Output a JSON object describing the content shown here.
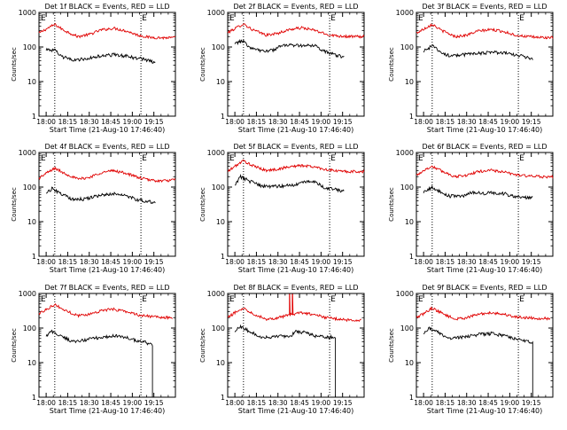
{
  "chart_data": {
    "type": "line",
    "yscale": "log",
    "ylim": [
      1,
      1000
    ],
    "xlim_minutes": [
      -5,
      90
    ],
    "ytick_labels": [
      "1",
      "10",
      "100",
      "1000"
    ],
    "ytick_values": [
      1,
      10,
      100,
      1000
    ],
    "xtick_labels": [
      "18:00",
      "18:15",
      "18:30",
      "18:45",
      "19:00",
      "19:15"
    ],
    "xtick_minutes": [
      0,
      15,
      30,
      45,
      60,
      75
    ],
    "ylabel": "Counts/sec",
    "xlabel": "Start Time (21-Aug-10 17:46:40)",
    "vlines_minutes": [
      6,
      66
    ],
    "marker_label": "E",
    "colors": {
      "events": "#000000",
      "lld": "#e00000"
    },
    "panels": [
      {
        "title": "Det 1f BLACK = Events, RED = LLD",
        "lld_knots": [
          [
            -5,
            250
          ],
          [
            0,
            330
          ],
          [
            6,
            450
          ],
          [
            12,
            310
          ],
          [
            22,
            200
          ],
          [
            30,
            230
          ],
          [
            38,
            310
          ],
          [
            47,
            350
          ],
          [
            56,
            290
          ],
          [
            64,
            220
          ],
          [
            72,
            190
          ],
          [
            80,
            185
          ],
          [
            90,
            185
          ]
        ],
        "events_knots": [
          [
            0,
            85
          ],
          [
            6,
            80
          ],
          [
            10,
            55
          ],
          [
            18,
            42
          ],
          [
            27,
            45
          ],
          [
            38,
            55
          ],
          [
            48,
            60
          ],
          [
            56,
            55
          ],
          [
            62,
            48
          ],
          [
            68,
            45
          ],
          [
            72,
            40
          ],
          [
            76,
            35
          ]
        ],
        "events_start": 0,
        "events_end": 76,
        "events_drop": null,
        "lld_spikes": []
      },
      {
        "title": "Det 2f BLACK = Events, RED = LLD",
        "lld_knots": [
          [
            -5,
            260
          ],
          [
            0,
            340
          ],
          [
            6,
            470
          ],
          [
            12,
            320
          ],
          [
            22,
            220
          ],
          [
            30,
            250
          ],
          [
            38,
            320
          ],
          [
            47,
            360
          ],
          [
            56,
            300
          ],
          [
            64,
            230
          ],
          [
            72,
            210
          ],
          [
            80,
            200
          ],
          [
            90,
            200
          ]
        ],
        "events_knots": [
          [
            0,
            130
          ],
          [
            6,
            150
          ],
          [
            10,
            100
          ],
          [
            18,
            75
          ],
          [
            26,
            80
          ],
          [
            34,
            115
          ],
          [
            42,
            110
          ],
          [
            48,
            110
          ],
          [
            56,
            110
          ],
          [
            60,
            80
          ],
          [
            70,
            60
          ],
          [
            76,
            50
          ]
        ],
        "events_start": 0,
        "events_end": 76,
        "events_drop": null,
        "lld_spikes": []
      },
      {
        "title": "Det 3f BLACK = Events, RED = LLD",
        "lld_knots": [
          [
            -5,
            250
          ],
          [
            0,
            330
          ],
          [
            6,
            460
          ],
          [
            12,
            310
          ],
          [
            22,
            200
          ],
          [
            30,
            220
          ],
          [
            38,
            290
          ],
          [
            47,
            320
          ],
          [
            56,
            280
          ],
          [
            64,
            220
          ],
          [
            72,
            200
          ],
          [
            80,
            190
          ],
          [
            90,
            185
          ]
        ],
        "events_knots": [
          [
            0,
            75
          ],
          [
            6,
            110
          ],
          [
            10,
            80
          ],
          [
            18,
            55
          ],
          [
            27,
            60
          ],
          [
            38,
            65
          ],
          [
            48,
            70
          ],
          [
            56,
            70
          ],
          [
            62,
            60
          ],
          [
            68,
            55
          ],
          [
            72,
            50
          ],
          [
            76,
            45
          ]
        ],
        "events_start": 0,
        "events_end": 76,
        "events_drop": null,
        "lld_spikes": []
      },
      {
        "title": "Det 4f BLACK = Events, RED = LLD",
        "lld_knots": [
          [
            -5,
            180
          ],
          [
            0,
            250
          ],
          [
            6,
            350
          ],
          [
            12,
            260
          ],
          [
            22,
            170
          ],
          [
            30,
            190
          ],
          [
            38,
            260
          ],
          [
            47,
            300
          ],
          [
            56,
            250
          ],
          [
            64,
            190
          ],
          [
            72,
            160
          ],
          [
            80,
            150
          ],
          [
            90,
            160
          ]
        ],
        "events_knots": [
          [
            0,
            70
          ],
          [
            4,
            90
          ],
          [
            10,
            65
          ],
          [
            18,
            45
          ],
          [
            27,
            45
          ],
          [
            38,
            60
          ],
          [
            48,
            65
          ],
          [
            56,
            55
          ],
          [
            62,
            45
          ],
          [
            68,
            40
          ],
          [
            72,
            38
          ],
          [
            76,
            35
          ]
        ],
        "events_start": 0,
        "events_end": 76,
        "events_drop": null,
        "lld_spikes": []
      },
      {
        "title": "Det 5f BLACK = Events, RED = LLD",
        "lld_knots": [
          [
            -5,
            280
          ],
          [
            0,
            400
          ],
          [
            6,
            580
          ],
          [
            12,
            420
          ],
          [
            22,
            300
          ],
          [
            30,
            330
          ],
          [
            38,
            390
          ],
          [
            47,
            420
          ],
          [
            56,
            380
          ],
          [
            64,
            320
          ],
          [
            72,
            290
          ],
          [
            80,
            280
          ],
          [
            90,
            280
          ]
        ],
        "events_knots": [
          [
            0,
            120
          ],
          [
            4,
            200
          ],
          [
            10,
            150
          ],
          [
            18,
            110
          ],
          [
            26,
            105
          ],
          [
            36,
            110
          ],
          [
            42,
            115
          ],
          [
            48,
            150
          ],
          [
            56,
            140
          ],
          [
            62,
            100
          ],
          [
            70,
            85
          ],
          [
            76,
            75
          ]
        ],
        "events_start": 0,
        "events_end": 76,
        "events_drop": null,
        "lld_spikes": []
      },
      {
        "title": "Det 6f BLACK = Events, RED = LLD",
        "lld_knots": [
          [
            -5,
            220
          ],
          [
            0,
            300
          ],
          [
            6,
            400
          ],
          [
            12,
            300
          ],
          [
            22,
            200
          ],
          [
            30,
            220
          ],
          [
            38,
            280
          ],
          [
            47,
            310
          ],
          [
            56,
            270
          ],
          [
            64,
            230
          ],
          [
            72,
            210
          ],
          [
            80,
            200
          ],
          [
            90,
            195
          ]
        ],
        "events_knots": [
          [
            0,
            70
          ],
          [
            6,
            100
          ],
          [
            10,
            80
          ],
          [
            18,
            55
          ],
          [
            27,
            55
          ],
          [
            34,
            70
          ],
          [
            42,
            65
          ],
          [
            48,
            70
          ],
          [
            56,
            65
          ],
          [
            62,
            55
          ],
          [
            70,
            50
          ],
          [
            76,
            48
          ]
        ],
        "events_start": 0,
        "events_end": 76,
        "events_drop": null,
        "lld_spikes": []
      },
      {
        "title": "Det 7f BLACK = Events, RED = LLD",
        "lld_knots": [
          [
            -5,
            260
          ],
          [
            0,
            350
          ],
          [
            6,
            480
          ],
          [
            12,
            340
          ],
          [
            22,
            230
          ],
          [
            30,
            250
          ],
          [
            38,
            320
          ],
          [
            47,
            350
          ],
          [
            56,
            300
          ],
          [
            64,
            240
          ],
          [
            72,
            220
          ],
          [
            80,
            200
          ],
          [
            88,
            200
          ]
        ],
        "events_knots": [
          [
            0,
            60
          ],
          [
            4,
            80
          ],
          [
            10,
            60
          ],
          [
            18,
            40
          ],
          [
            27,
            45
          ],
          [
            38,
            55
          ],
          [
            48,
            60
          ],
          [
            56,
            55
          ],
          [
            62,
            45
          ],
          [
            68,
            40
          ],
          [
            72,
            35
          ],
          [
            74,
            32
          ]
        ],
        "events_start": 0,
        "events_end": 74,
        "events_drop": 74,
        "lld_spikes": []
      },
      {
        "title": "Det 8f BLACK = Events, RED = LLD",
        "lld_knots": [
          [
            -5,
            200
          ],
          [
            0,
            280
          ],
          [
            6,
            380
          ],
          [
            12,
            270
          ],
          [
            22,
            180
          ],
          [
            30,
            200
          ],
          [
            38,
            240
          ],
          [
            47,
            280
          ],
          [
            56,
            240
          ],
          [
            64,
            200
          ],
          [
            72,
            180
          ],
          [
            80,
            170
          ],
          [
            88,
            170
          ]
        ],
        "events_knots": [
          [
            0,
            80
          ],
          [
            4,
            110
          ],
          [
            10,
            80
          ],
          [
            18,
            55
          ],
          [
            27,
            55
          ],
          [
            34,
            60
          ],
          [
            38,
            55
          ],
          [
            42,
            80
          ],
          [
            48,
            75
          ],
          [
            56,
            60
          ],
          [
            62,
            55
          ],
          [
            70,
            55
          ]
        ],
        "events_start": 0,
        "events_end": 70,
        "events_drop": 70,
        "lld_spikes": [
          38,
          40
        ]
      },
      {
        "title": "Det 9f BLACK = Events, RED = LLD",
        "lld_knots": [
          [
            -5,
            200
          ],
          [
            0,
            260
          ],
          [
            6,
            380
          ],
          [
            12,
            280
          ],
          [
            22,
            180
          ],
          [
            30,
            200
          ],
          [
            38,
            250
          ],
          [
            47,
            280
          ],
          [
            56,
            250
          ],
          [
            64,
            210
          ],
          [
            72,
            200
          ],
          [
            80,
            190
          ],
          [
            88,
            190
          ]
        ],
        "events_knots": [
          [
            0,
            70
          ],
          [
            4,
            100
          ],
          [
            10,
            75
          ],
          [
            18,
            50
          ],
          [
            27,
            55
          ],
          [
            38,
            65
          ],
          [
            48,
            70
          ],
          [
            56,
            60
          ],
          [
            62,
            50
          ],
          [
            68,
            45
          ],
          [
            72,
            40
          ],
          [
            76,
            38
          ]
        ],
        "events_start": 0,
        "events_end": 76,
        "events_drop": 76,
        "lld_spikes": []
      }
    ]
  }
}
